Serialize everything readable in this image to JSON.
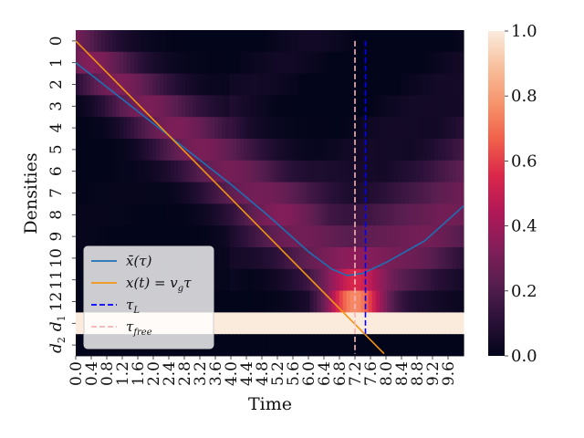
{
  "chart_data": {
    "type": "heatmap",
    "xlabel": "Time",
    "ylabel": "Densities",
    "x_tick_labels": [
      "0.0",
      "0.4",
      "0.8",
      "1.2",
      "1.6",
      "2.0",
      "2.4",
      "2.8",
      "3.2",
      "3.6",
      "4.0",
      "4.4",
      "4.8",
      "5.2",
      "5.6",
      "6.0",
      "6.4",
      "6.8",
      "7.2",
      "7.6",
      "8.0",
      "8.4",
      "8.8",
      "9.2",
      "9.6"
    ],
    "y_tick_labels": [
      "0",
      "1",
      "2",
      "3",
      "4",
      "5",
      "6",
      "7",
      "8",
      "9",
      "10",
      "11",
      "12",
      "d_1",
      "d_2"
    ],
    "rows": [
      "0",
      "1",
      "2",
      "3",
      "4",
      "5",
      "6",
      "7",
      "8",
      "9",
      "10",
      "11",
      "12",
      "d_1",
      "d_2"
    ],
    "time_range": [
      0,
      10
    ],
    "time_step": 0.4,
    "colorbar": {
      "vmin": 0,
      "vmax": 1,
      "ticks": [
        0.0,
        0.2,
        0.4,
        0.6,
        0.8,
        1.0
      ],
      "tick_labels": [
        "0.0",
        "0.2",
        "0.4",
        "0.6",
        "0.8",
        "1.0"
      ],
      "colormap": "rocket",
      "stops": [
        "#03051a",
        "#2b1139",
        "#571e4f",
        "#841e5a",
        "#b11857",
        "#db284b",
        "#f1604a",
        "#f6946d",
        "#f8bf9c",
        "#faebdd"
      ]
    },
    "pulse": {
      "description_rows": "packet of density travelling from row 0 downward",
      "start_row": 0,
      "min_row": 10.8,
      "min_time": 7.05,
      "end_row": 7.6,
      "end_time": 10.0
    },
    "row_d1_value": 1.0,
    "row_d2_value": 0.0,
    "series": [
      {
        "name": "$\\bar{x}(\\tau)$",
        "color": "#1f6fb4",
        "style": "solid",
        "x": [
          0.0,
          1.0,
          2.0,
          3.0,
          4.0,
          5.0,
          6.0,
          6.6,
          7.0,
          7.4,
          8.0,
          9.0,
          10.0
        ],
        "y": [
          1.0,
          2.4,
          3.8,
          5.2,
          6.6,
          8.1,
          9.7,
          10.5,
          10.8,
          10.7,
          10.2,
          9.2,
          7.6
        ]
      },
      {
        "name": "$x(t) = v_g\\tau$",
        "color": "#f29411",
        "style": "solid",
        "x": [
          0.0,
          7.95
        ],
        "y": [
          0.0,
          14.4
        ]
      },
      {
        "name": "$\\tau_L$",
        "color": "#0000ff",
        "style": "dashed",
        "x": [
          7.47,
          7.47
        ],
        "y": [
          0.0,
          13.6
        ]
      },
      {
        "name": "$\\tau_{free}$",
        "color": "#f4b6b6",
        "style": "dashed",
        "x": [
          7.2,
          7.2
        ],
        "y": [
          0.0,
          14.4
        ]
      }
    ],
    "legend": {
      "placement": "lower-left",
      "entries": [
        {
          "label_main": "x̄(τ)",
          "color": "#1f6fb4",
          "style": "solid"
        },
        {
          "label_main": "x(t) = v",
          "label_sub": "g",
          "label_tail": "τ",
          "color": "#f29411",
          "style": "solid"
        },
        {
          "label_main": "τ",
          "label_sub": "L",
          "color": "#0000ff",
          "style": "dashed"
        },
        {
          "label_main": "τ",
          "label_sub": "free",
          "color": "#f4b6b6",
          "style": "dashed"
        }
      ]
    }
  }
}
